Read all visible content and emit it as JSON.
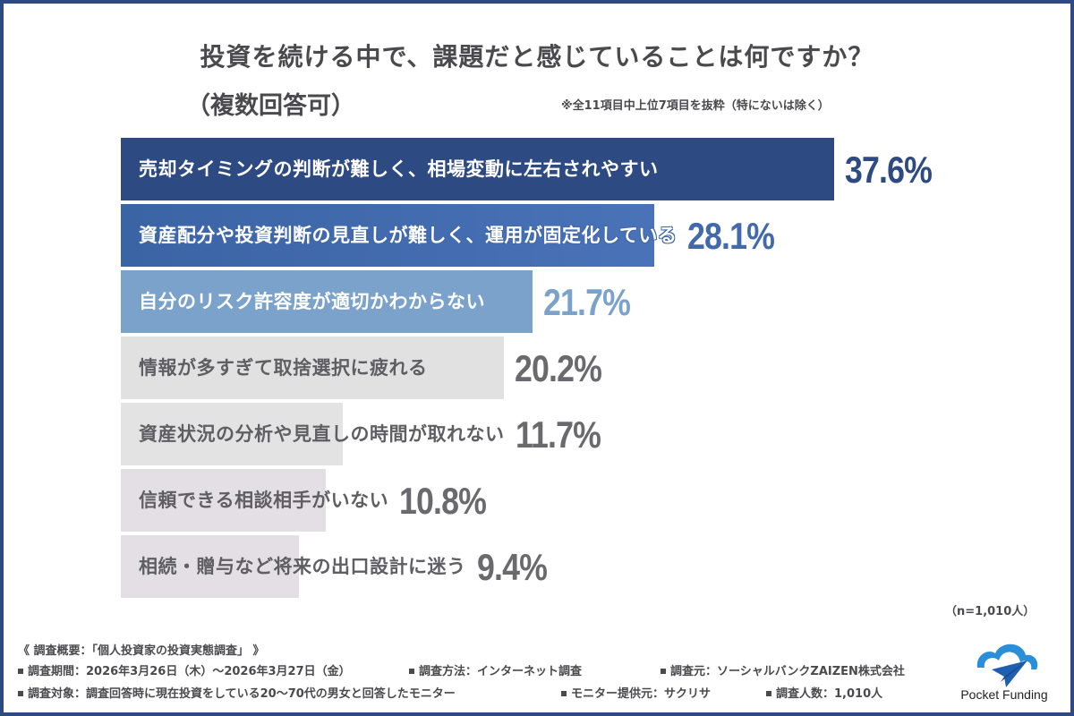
{
  "header": {
    "title": "投資を続ける中で、課題だと感じていることは何ですか？",
    "subtitle": "（複数回答可）",
    "note": "※全11項目中上位7項目を抜粋（特にないは除く）"
  },
  "chart_data": {
    "type": "bar",
    "orientation": "horizontal",
    "title": "投資を続ける中で、課題だと感じていることは何ですか？（複数回答可）",
    "subtitle": "※全11項目中上位7項目を抜粋（特にないは除く）",
    "categories": [
      "売却タイミングの判断が難しく、相場変動に左右されやすい",
      "資産配分や投資判断の見直しが難しく、運用が固定化している",
      "自分のリスク許容度が適切かわからない",
      "情報が多すぎて取捨選択に疲れる",
      "資産状況の分析や見直しの時間が取れない",
      "信頼できる相談相手がいない",
      "相続・贈与など将来の出口設計に迷う"
    ],
    "values": [
      37.6,
      28.1,
      21.7,
      20.2,
      11.7,
      10.8,
      9.4
    ],
    "value_labels": [
      "37.6%",
      "28.1%",
      "21.7%",
      "20.2%",
      "11.7%",
      "10.8%",
      "9.4%"
    ],
    "unit": "%",
    "xlabel": "",
    "ylabel": "",
    "sample_size": "n=1,010人",
    "grid": false,
    "legend": false,
    "bar_colors": [
      "#2e4a82",
      "#4169ab",
      "#7aa2cb",
      "#e1e1e1",
      "#e3e3e3",
      "#e3dfe4",
      "#e3dfe4"
    ],
    "value_colors": [
      "#2e4a82",
      "#4169ab",
      "#7aa2cb",
      "#6a6a6e",
      "#6a6a6e",
      "#6a6a6e",
      "#6a6a6e"
    ]
  },
  "n_label": "（n=1,010人）",
  "footer": {
    "overview": "《 調査概要：「個人投資家の投資実態調査」 》",
    "period": "調査期間：2026年3月26日（木）～2026年3月27日（金）",
    "method": "調査方法：インターネット調査",
    "source": "調査元：ソーシャルバンクZAIZEN株式会社",
    "target": "調査対象：調査回答時に現在投資をしている20～70代の男女と回答したモニター",
    "monitor": "モニター提供元：サクリサ",
    "count": "調査人数：1,010人"
  },
  "logo": {
    "text": "Pocket Funding",
    "colors": {
      "cloud": "#2a8fd8",
      "plane": "#1f5fb0"
    }
  }
}
